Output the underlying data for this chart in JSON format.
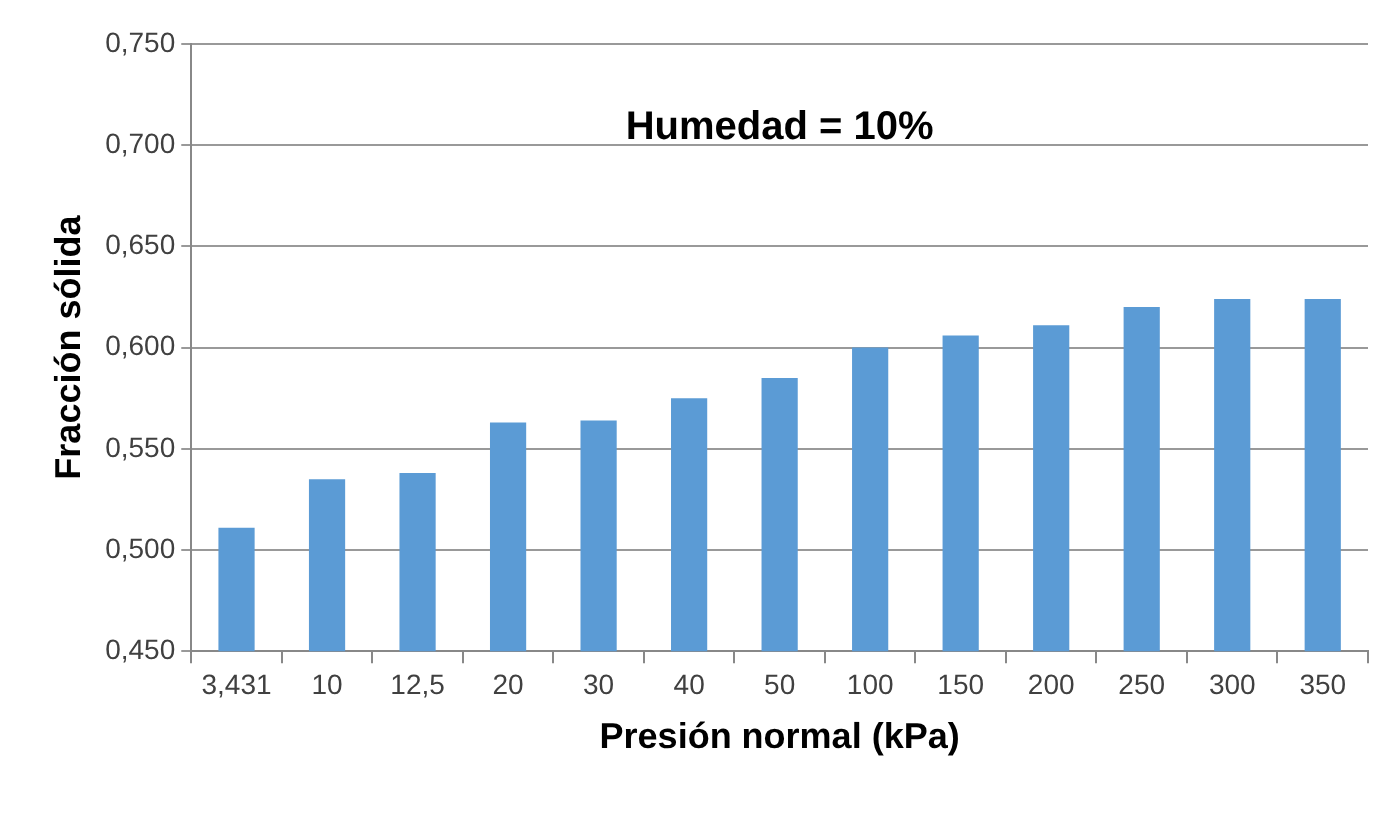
{
  "chart_data": {
    "type": "bar",
    "title": "Humedad = 10%",
    "xlabel": "Presión normal (kPa)",
    "ylabel": "Fracción sólida",
    "categories": [
      "3,431",
      "10",
      "12,5",
      "20",
      "30",
      "40",
      "50",
      "100",
      "150",
      "200",
      "250",
      "300",
      "350"
    ],
    "values": [
      0.511,
      0.535,
      0.538,
      0.563,
      0.564,
      0.575,
      0.585,
      0.6,
      0.606,
      0.611,
      0.62,
      0.624,
      0.624
    ],
    "color": "#5b9bd5",
    "ylim": [
      0.45,
      0.75
    ],
    "yticks": [
      {
        "value": 0.45,
        "label": "0,450"
      },
      {
        "value": 0.5,
        "label": "0,500"
      },
      {
        "value": 0.55,
        "label": "0,550"
      },
      {
        "value": 0.6,
        "label": "0,600"
      },
      {
        "value": 0.65,
        "label": "0,650"
      },
      {
        "value": 0.7,
        "label": "0,700"
      },
      {
        "value": 0.75,
        "label": "0,750"
      }
    ],
    "grid": "y",
    "legend": false
  }
}
